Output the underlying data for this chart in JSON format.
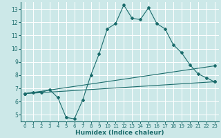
{
  "title": "",
  "xlabel": "Humidex (Indice chaleur)",
  "ylabel": "",
  "bg_color": "#cce8e8",
  "grid_color": "#ffffff",
  "line_color": "#1a6b6b",
  "xlim": [
    -0.5,
    23.5
  ],
  "ylim": [
    4.5,
    13.5
  ],
  "xticks": [
    0,
    1,
    2,
    3,
    4,
    5,
    6,
    7,
    8,
    9,
    10,
    11,
    12,
    13,
    14,
    15,
    16,
    17,
    18,
    19,
    20,
    21,
    22,
    23
  ],
  "yticks": [
    5,
    6,
    7,
    8,
    9,
    10,
    11,
    12,
    13
  ],
  "series1_x": [
    0,
    1,
    2,
    3,
    4,
    5,
    6,
    7,
    8,
    9,
    10,
    11,
    12,
    13,
    14,
    15,
    16,
    17,
    18,
    19,
    20,
    21,
    22,
    23
  ],
  "series1_y": [
    6.6,
    6.7,
    6.7,
    6.9,
    6.3,
    4.8,
    4.7,
    6.1,
    8.0,
    9.6,
    11.5,
    11.9,
    13.3,
    12.3,
    12.2,
    13.1,
    11.9,
    11.5,
    10.3,
    9.7,
    8.8,
    8.1,
    7.8,
    7.5
  ],
  "series2_x": [
    0,
    23
  ],
  "series2_y": [
    6.6,
    7.5
  ],
  "series3_x": [
    0,
    23
  ],
  "series3_y": [
    6.6,
    8.7
  ]
}
